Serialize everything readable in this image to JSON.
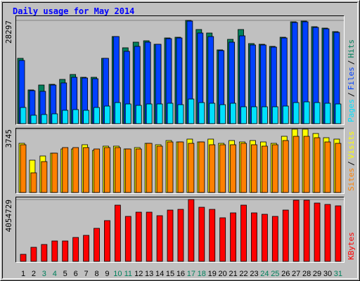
{
  "chart_data": [
    {
      "type": "bar",
      "title": "Daily usage for May 2014",
      "legend_separator": "/",
      "ylim": [
        0,
        28297
      ],
      "yticks": [
        28297
      ],
      "grid": true,
      "series": [
        {
          "name": "Pages",
          "color": "#00e0ff",
          "values": [
            4428,
            2310,
            2503,
            2695,
            3658,
            3850,
            3658,
            4428,
            4813,
            5775,
            5390,
            5005,
            5390,
            5390,
            5583,
            5198,
            6738,
            5775,
            5583,
            5198,
            5583,
            4620,
            4620,
            4620,
            4620,
            4813,
            5775,
            5968,
            5775,
            5583,
            5390
          ]
        },
        {
          "name": "Files",
          "color": "#0040ff",
          "values": [
            17325,
            9048,
            8855,
            10588,
            11165,
            12705,
            12513,
            12320,
            17903,
            23870,
            19828,
            21175,
            22330,
            21753,
            23293,
            23485,
            28105,
            24833,
            23870,
            20020,
            22330,
            24063,
            21560,
            21560,
            20983,
            23485,
            27720,
            27913,
            26373,
            25988,
            25025
          ]
        },
        {
          "name": "Hits",
          "color": "#00805c",
          "values": [
            17903,
            9240,
            10588,
            10780,
            12128,
            13475,
            12705,
            12705,
            17903,
            23870,
            20790,
            22330,
            22715,
            21753,
            23485,
            23678,
            28297,
            25795,
            24833,
            20213,
            23100,
            25795,
            21945,
            21753,
            21175,
            23678,
            27913,
            28105,
            26565,
            26180,
            25218
          ]
        }
      ]
    },
    {
      "type": "bar",
      "ylim": [
        0,
        3745
      ],
      "yticks": [
        3745
      ],
      "grid": true,
      "series": [
        {
          "name": "Sites",
          "color": "#ff8000",
          "values": [
            2829,
            1165,
            1830,
            2330,
            2662,
            2662,
            2662,
            2579,
            2662,
            2662,
            2579,
            2579,
            2912,
            2746,
            2995,
            2995,
            2912,
            2995,
            2829,
            2829,
            2829,
            2912,
            2829,
            2746,
            2829,
            3078,
            3328,
            3328,
            3245,
            2995,
            2912
          ]
        },
        {
          "name": "Visits",
          "color": "#ffff00",
          "values": [
            2913,
            1914,
            2163,
            2330,
            2579,
            2579,
            2829,
            2496,
            2746,
            2746,
            2579,
            2662,
            2912,
            2829,
            3078,
            2995,
            3162,
            2995,
            3162,
            2912,
            3078,
            2995,
            3078,
            2995,
            2912,
            3329,
            3745,
            3745,
            3494,
            3245,
            3162
          ]
        }
      ]
    },
    {
      "type": "bar",
      "ylim": [
        0,
        4054729
      ],
      "yticks": [
        4054729
      ],
      "grid": true,
      "categories": [
        "1",
        "2",
        "3",
        "4",
        "5",
        "6",
        "7",
        "8",
        "9",
        "10",
        "11",
        "12",
        "13",
        "14",
        "15",
        "16",
        "17",
        "18",
        "19",
        "20",
        "21",
        "22",
        "23",
        "24",
        "25",
        "26",
        "27",
        "28",
        "29",
        "30",
        "31"
      ],
      "category_colors": [
        "#000000",
        "#000000",
        "#00805c",
        "#00805c",
        "#000000",
        "#000000",
        "#000000",
        "#000000",
        "#000000",
        "#00805c",
        "#00805c",
        "#000000",
        "#000000",
        "#000000",
        "#000000",
        "#000000",
        "#00805c",
        "#00805c",
        "#000000",
        "#000000",
        "#000000",
        "#000000",
        "#000000",
        "#00805c",
        "#00805c",
        "#000000",
        "#000000",
        "#000000",
        "#000000",
        "#000000",
        "#00805c"
      ],
      "series": [
        {
          "name": "KBytes",
          "color": "#ff0000",
          "values": [
            460760,
            921520,
            1105824,
            1336204,
            1336204,
            1566584,
            1704812,
            2165572,
            2672408,
            3686080,
            2948864,
            3225320,
            3225320,
            2994940,
            3363548,
            3409624,
            4054729,
            3547852,
            3409624,
            2856712,
            3179244,
            3686080,
            3179244,
            3087092,
            2948864,
            3363548,
            4008652,
            4008652,
            3824308,
            3732156,
            3640004
          ]
        }
      ]
    }
  ]
}
